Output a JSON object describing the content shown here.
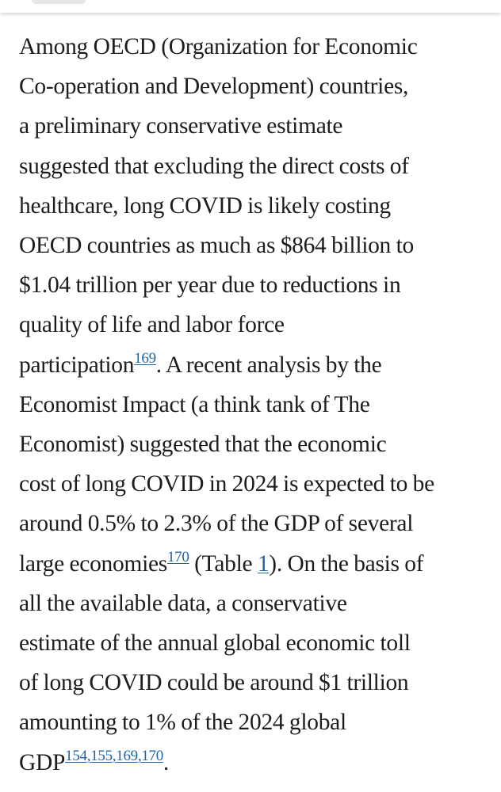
{
  "paragraph": {
    "lines": [
      "Among OECD (Organization for Economic",
      "Co-operation and Development) countries,",
      "a preliminary conservative estimate",
      "suggested that excluding the direct costs of",
      "healthcare, long COVID is likely costing",
      "OECD countries as much as $864 billion to",
      "$1.04 trillion per year due to reductions in",
      "quality of life and labor force"
    ],
    "line9_text": "participation",
    "line9_ref": "169",
    "line9_after": ". A recent analysis by the",
    "lines_b": [
      "Economist Impact (a think tank of The",
      "Economist) suggested that the economic",
      "cost of long COVID in 2024 is expected to be",
      "around 0.5% to 2.3% of the GDP of several"
    ],
    "line14_text": "large economies",
    "line14_ref": "170",
    "line14_mid": " (Table ",
    "line14_table_link": "1",
    "line14_after": "). On the basis of",
    "lines_c": [
      "all the available data, a conservative",
      "estimate of the annual global economic toll",
      "of long COVID could be around $1 trillion",
      "amounting to 1% of the 2024 global"
    ],
    "line19_text": "GDP",
    "line19_refs": [
      "154",
      "155",
      "169",
      "170"
    ],
    "line19_sep": ",",
    "line19_after": "."
  },
  "colors": {
    "text": "#1d1d1d",
    "link": "#1f64a6",
    "background": "#ffffff"
  }
}
